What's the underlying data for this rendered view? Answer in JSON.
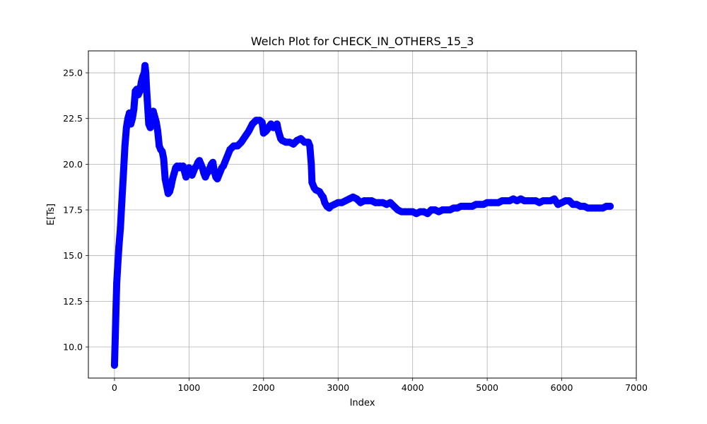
{
  "chart_data": {
    "type": "line",
    "title": "Welch Plot for CHECK_IN_OTHERS_15_3",
    "xlabel": "Index",
    "ylabel": "E[Ts]",
    "xlim": [
      -350,
      7000
    ],
    "ylim": [
      8.3,
      26.2
    ],
    "xticks": [
      0,
      1000,
      2000,
      3000,
      4000,
      5000,
      6000,
      7000
    ],
    "xtick_labels": [
      "0",
      "1000",
      "2000",
      "3000",
      "4000",
      "5000",
      "6000",
      "7000"
    ],
    "yticks": [
      10.0,
      12.5,
      15.0,
      17.5,
      20.0,
      22.5,
      25.0
    ],
    "ytick_labels": [
      "10.0",
      "12.5",
      "15.0",
      "17.5",
      "20.0",
      "22.5",
      "25.0"
    ],
    "grid": true,
    "marker": "circle",
    "series": [
      {
        "color": "#0000ff",
        "x": [
          0,
          10,
          20,
          30,
          45,
          60,
          80,
          100,
          120,
          140,
          160,
          180,
          200,
          220,
          240,
          260,
          280,
          300,
          320,
          340,
          360,
          380,
          400,
          410,
          420,
          430,
          440,
          460,
          480,
          500,
          520,
          540,
          560,
          580,
          600,
          620,
          640,
          660,
          680,
          700,
          720,
          740,
          760,
          780,
          800,
          820,
          840,
          860,
          880,
          900,
          920,
          940,
          960,
          980,
          1000,
          1020,
          1040,
          1060,
          1080,
          1100,
          1120,
          1140,
          1160,
          1180,
          1200,
          1220,
          1240,
          1260,
          1280,
          1300,
          1320,
          1340,
          1360,
          1380,
          1400,
          1420,
          1440,
          1460,
          1480,
          1500,
          1550,
          1600,
          1650,
          1700,
          1750,
          1800,
          1850,
          1900,
          1950,
          1980,
          2000,
          2030,
          2050,
          2080,
          2100,
          2130,
          2150,
          2180,
          2200,
          2230,
          2250,
          2300,
          2350,
          2400,
          2450,
          2500,
          2550,
          2600,
          2620,
          2640,
          2650,
          2680,
          2700,
          2750,
          2780,
          2800,
          2820,
          2850,
          2880,
          2900,
          2950,
          3000,
          3050,
          3100,
          3150,
          3200,
          3250,
          3300,
          3350,
          3400,
          3450,
          3500,
          3550,
          3600,
          3650,
          3700,
          3750,
          3800,
          3850,
          3900,
          3950,
          4000,
          4050,
          4100,
          4150,
          4200,
          4250,
          4300,
          4350,
          4400,
          4450,
          4500,
          4550,
          4600,
          4650,
          4700,
          4750,
          4800,
          4850,
          4900,
          4950,
          5000,
          5050,
          5100,
          5150,
          5200,
          5250,
          5300,
          5350,
          5400,
          5450,
          5500,
          5550,
          5600,
          5650,
          5700,
          5750,
          5800,
          5850,
          5900,
          5950,
          6000,
          6050,
          6100,
          6150,
          6200,
          6250,
          6300,
          6350,
          6400,
          6450,
          6500,
          6550,
          6600,
          6650
        ],
        "y": [
          9.0,
          10.5,
          12.0,
          13.5,
          14.5,
          15.5,
          16.5,
          18.0,
          19.5,
          21.0,
          22.0,
          22.5,
          22.8,
          22.2,
          22.5,
          23.0,
          24.0,
          24.1,
          23.8,
          24.0,
          24.5,
          24.8,
          25.0,
          25.4,
          25.0,
          24.2,
          23.5,
          22.2,
          22.0,
          22.6,
          22.9,
          22.6,
          22.3,
          21.8,
          21.0,
          20.8,
          20.7,
          20.3,
          19.2,
          18.8,
          18.4,
          18.5,
          18.8,
          19.2,
          19.5,
          19.8,
          19.9,
          19.8,
          19.9,
          19.8,
          19.9,
          19.6,
          19.3,
          19.5,
          19.8,
          19.6,
          19.4,
          19.6,
          19.8,
          19.9,
          20.1,
          20.2,
          20.0,
          19.8,
          19.5,
          19.3,
          19.5,
          19.6,
          19.8,
          20.0,
          20.1,
          19.6,
          19.3,
          19.2,
          19.4,
          19.6,
          19.8,
          19.9,
          20.1,
          20.3,
          20.8,
          21.0,
          21.0,
          21.2,
          21.5,
          21.8,
          22.2,
          22.4,
          22.4,
          22.3,
          21.7,
          21.8,
          21.9,
          22.1,
          22.2,
          22.0,
          22.1,
          22.2,
          21.8,
          21.4,
          21.3,
          21.2,
          21.2,
          21.1,
          21.3,
          21.4,
          21.2,
          21.2,
          21.0,
          20.0,
          19.0,
          18.7,
          18.6,
          18.5,
          18.3,
          18.2,
          17.9,
          17.7,
          17.6,
          17.7,
          17.8,
          17.9,
          17.9,
          18.0,
          18.1,
          18.2,
          18.1,
          17.9,
          18.0,
          18.0,
          18.0,
          17.9,
          17.9,
          17.9,
          17.8,
          17.9,
          17.7,
          17.5,
          17.4,
          17.4,
          17.4,
          17.4,
          17.3,
          17.4,
          17.4,
          17.3,
          17.5,
          17.5,
          17.4,
          17.5,
          17.5,
          17.5,
          17.6,
          17.6,
          17.7,
          17.7,
          17.7,
          17.7,
          17.8,
          17.8,
          17.8,
          17.9,
          17.9,
          17.9,
          17.9,
          18.0,
          18.0,
          18.0,
          18.1,
          18.0,
          18.1,
          18.0,
          18.0,
          18.0,
          18.0,
          17.9,
          18.0,
          18.0,
          18.0,
          18.1,
          17.8,
          17.9,
          18.0,
          18.0,
          17.8,
          17.8,
          17.7,
          17.7,
          17.6,
          17.6,
          17.6,
          17.6,
          17.6,
          17.7,
          17.7
        ]
      }
    ]
  }
}
